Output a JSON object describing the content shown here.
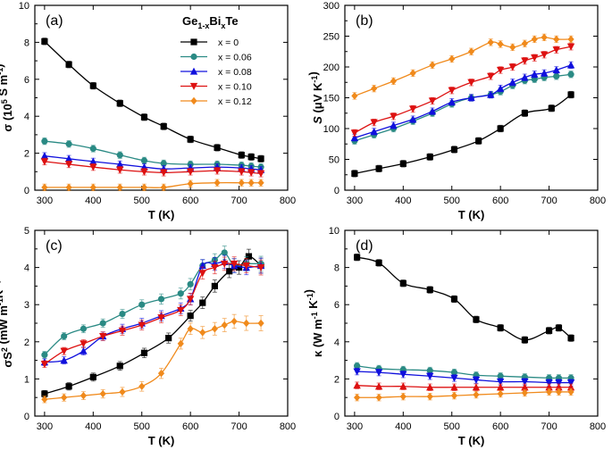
{
  "chart_data": [
    {
      "type": "line",
      "panel_label": "(a)",
      "title": "",
      "xlabel": "T (K)",
      "ylabel": "σ (10⁵ S m⁻¹)",
      "xlim": [
        280,
        800
      ],
      "ylim": [
        0,
        10
      ],
      "xticks": [
        300,
        400,
        500,
        600,
        700,
        800
      ],
      "yticks": [
        0,
        2,
        4,
        6,
        8,
        10
      ],
      "legend": {
        "title_main": "Ge",
        "title_sub1": "1-x",
        "title_mid": "Bi",
        "title_sub2": "x",
        "title_end": "Te",
        "entries": [
          "x = 0",
          "x = 0.06",
          "x = 0.08",
          "x = 0.10",
          "x = 0.12"
        ]
      },
      "x": [
        300,
        350,
        400,
        455,
        505,
        545,
        600,
        655,
        705,
        725,
        745
      ],
      "series": [
        {
          "name": "x = 0",
          "color": "#000000",
          "marker": "square",
          "values": [
            8.05,
            6.8,
            5.65,
            4.7,
            3.95,
            3.45,
            2.75,
            2.3,
            1.9,
            1.8,
            1.7
          ]
        },
        {
          "name": "x = 0.06",
          "color": "#2a8a84",
          "marker": "circle",
          "values": [
            2.65,
            2.5,
            2.25,
            1.9,
            1.6,
            1.45,
            1.4,
            1.4,
            1.35,
            1.3,
            1.25
          ]
        },
        {
          "name": "x = 0.08",
          "color": "#1010dd",
          "marker": "triangle-up",
          "values": [
            1.85,
            1.7,
            1.55,
            1.4,
            1.25,
            1.15,
            1.2,
            1.25,
            1.2,
            1.15,
            1.1
          ]
        },
        {
          "name": "x = 0.10",
          "color": "#dd1111",
          "marker": "triangle-down",
          "values": [
            1.55,
            1.4,
            1.25,
            1.1,
            1.0,
            0.95,
            1.0,
            1.05,
            1.0,
            0.95,
            0.9
          ]
        },
        {
          "name": "x = 0.12",
          "color": "#f08a1c",
          "marker": "diamond",
          "values": [
            0.15,
            0.15,
            0.15,
            0.15,
            0.15,
            0.15,
            0.35,
            0.4,
            0.4,
            0.4,
            0.4
          ]
        }
      ]
    },
    {
      "type": "line",
      "panel_label": "(b)",
      "title": "",
      "xlabel": "T (K)",
      "ylabel": "S (μV K⁻¹)",
      "xlim": [
        280,
        800
      ],
      "ylim": [
        0,
        300
      ],
      "xticks": [
        300,
        400,
        500,
        600,
        700,
        800
      ],
      "yticks": [
        0,
        50,
        100,
        150,
        200,
        250,
        300
      ],
      "series": [
        {
          "name": "x = 0",
          "color": "#000000",
          "marker": "square",
          "x": [
            300,
            350,
            400,
            455,
            505,
            555,
            600,
            650,
            705,
            745
          ],
          "values": [
            27,
            35,
            43,
            54,
            66,
            80,
            100,
            125,
            133,
            155
          ]
        },
        {
          "name": "x = 0.06",
          "color": "#2a8a84",
          "marker": "circle",
          "x": [
            300,
            340,
            380,
            420,
            460,
            500,
            540,
            580,
            600,
            625,
            650,
            670,
            690,
            715,
            745
          ],
          "values": [
            80,
            90,
            100,
            112,
            125,
            140,
            150,
            155,
            160,
            170,
            178,
            180,
            183,
            185,
            188
          ]
        },
        {
          "name": "x = 0.08",
          "color": "#1010dd",
          "marker": "triangle-up",
          "x": [
            300,
            340,
            380,
            420,
            460,
            500,
            540,
            580,
            600,
            625,
            650,
            670,
            690,
            715,
            745
          ],
          "values": [
            85,
            95,
            105,
            115,
            128,
            143,
            150,
            155,
            165,
            175,
            183,
            188,
            190,
            195,
            203
          ]
        },
        {
          "name": "x = 0.10",
          "color": "#dd1111",
          "marker": "triangle-down",
          "x": [
            300,
            340,
            380,
            420,
            460,
            500,
            540,
            580,
            600,
            625,
            650,
            670,
            690,
            715,
            745
          ],
          "values": [
            93,
            110,
            120,
            132,
            145,
            162,
            175,
            185,
            195,
            200,
            210,
            215,
            220,
            228,
            233
          ]
        },
        {
          "name": "x = 0.12",
          "color": "#f08a1c",
          "marker": "diamond",
          "x": [
            300,
            340,
            380,
            420,
            460,
            500,
            540,
            580,
            600,
            625,
            650,
            670,
            690,
            715,
            745
          ],
          "values": [
            153,
            165,
            177,
            190,
            203,
            213,
            225,
            240,
            237,
            232,
            238,
            245,
            248,
            245,
            245
          ]
        }
      ]
    },
    {
      "type": "line",
      "panel_label": "(c)",
      "title": "",
      "xlabel": "T (K)",
      "ylabel": "σS² (mW m⁻¹K⁻²)",
      "xlim": [
        280,
        800
      ],
      "ylim": [
        0,
        5
      ],
      "xticks": [
        300,
        400,
        500,
        600,
        700,
        800
      ],
      "yticks": [
        0,
        1,
        2,
        3,
        4,
        5
      ],
      "series": [
        {
          "name": "x = 0",
          "color": "#000000",
          "marker": "square",
          "x": [
            300,
            350,
            400,
            455,
            505,
            555,
            600,
            625,
            650,
            680,
            700,
            720,
            745
          ],
          "values": [
            0.6,
            0.8,
            1.05,
            1.35,
            1.7,
            2.1,
            2.7,
            3.05,
            3.5,
            3.9,
            4.0,
            4.3,
            4.05
          ]
        },
        {
          "name": "x = 0.06",
          "color": "#2a8a84",
          "marker": "circle",
          "x": [
            300,
            340,
            380,
            420,
            460,
            500,
            540,
            580,
            600,
            625,
            650,
            670,
            690,
            715,
            745
          ],
          "values": [
            1.65,
            2.15,
            2.35,
            2.5,
            2.75,
            3.0,
            3.15,
            3.3,
            3.55,
            4.05,
            4.2,
            4.4,
            4.05,
            4.1,
            4.1
          ]
        },
        {
          "name": "x = 0.08",
          "color": "#1010dd",
          "marker": "triangle-up",
          "x": [
            300,
            340,
            380,
            420,
            460,
            500,
            540,
            580,
            600,
            625,
            650,
            670,
            690,
            715,
            745
          ],
          "values": [
            1.45,
            1.5,
            1.75,
            2.15,
            2.35,
            2.5,
            2.7,
            2.9,
            3.15,
            4.05,
            4.1,
            4.15,
            4.05,
            4.0,
            4.05
          ]
        },
        {
          "name": "x = 0.10",
          "color": "#dd1111",
          "marker": "triangle-down",
          "x": [
            300,
            340,
            380,
            420,
            460,
            500,
            540,
            580,
            600,
            625,
            650,
            670,
            690,
            715,
            745
          ],
          "values": [
            1.4,
            1.75,
            1.95,
            2.15,
            2.3,
            2.45,
            2.65,
            2.85,
            3.15,
            3.85,
            4.0,
            4.1,
            4.1,
            4.05,
            4.0
          ]
        },
        {
          "name": "x = 0.12",
          "color": "#f08a1c",
          "marker": "diamond",
          "x": [
            300,
            340,
            380,
            420,
            460,
            500,
            540,
            580,
            600,
            625,
            650,
            670,
            690,
            715,
            745
          ],
          "values": [
            0.45,
            0.5,
            0.55,
            0.6,
            0.65,
            0.8,
            1.15,
            1.95,
            2.35,
            2.25,
            2.35,
            2.45,
            2.55,
            2.5,
            2.5
          ]
        }
      ]
    },
    {
      "type": "line",
      "panel_label": "(d)",
      "title": "",
      "xlabel": "T (K)",
      "ylabel": "κ (W m⁻¹ K⁻¹)",
      "xlim": [
        280,
        800
      ],
      "ylim": [
        0,
        10
      ],
      "xticks": [
        300,
        400,
        500,
        600,
        700,
        800
      ],
      "yticks": [
        0,
        2,
        4,
        6,
        8,
        10
      ],
      "series": [
        {
          "name": "x = 0",
          "color": "#000000",
          "marker": "square",
          "x": [
            305,
            350,
            400,
            455,
            505,
            550,
            600,
            650,
            700,
            720,
            745
          ],
          "values": [
            8.55,
            8.25,
            7.15,
            6.8,
            6.3,
            5.2,
            4.75,
            4.1,
            4.6,
            4.75,
            4.2
          ]
        },
        {
          "name": "x = 0.06",
          "color": "#2a8a84",
          "marker": "circle",
          "x": [
            305,
            350,
            400,
            455,
            505,
            550,
            600,
            650,
            700,
            720,
            745
          ],
          "values": [
            2.7,
            2.55,
            2.5,
            2.45,
            2.35,
            2.2,
            2.15,
            2.1,
            2.05,
            2.05,
            2.05
          ]
        },
        {
          "name": "x = 0.08",
          "color": "#1010dd",
          "marker": "triangle-down",
          "x": [
            305,
            350,
            400,
            455,
            505,
            550,
            600,
            650,
            700,
            720,
            745
          ],
          "values": [
            2.4,
            2.35,
            2.25,
            2.15,
            2.05,
            1.95,
            1.85,
            1.85,
            1.8,
            1.8,
            1.8
          ]
        },
        {
          "name": "x = 0.10",
          "color": "#dd1111",
          "marker": "triangle-up",
          "x": [
            305,
            350,
            400,
            455,
            505,
            550,
            600,
            650,
            700,
            720,
            745
          ],
          "values": [
            1.65,
            1.6,
            1.6,
            1.55,
            1.55,
            1.55,
            1.55,
            1.55,
            1.55,
            1.55,
            1.55
          ]
        },
        {
          "name": "x = 0.12",
          "color": "#f08a1c",
          "marker": "diamond",
          "x": [
            305,
            350,
            400,
            455,
            505,
            550,
            600,
            650,
            700,
            720,
            745
          ],
          "values": [
            1.0,
            1.0,
            1.05,
            1.05,
            1.1,
            1.15,
            1.2,
            1.25,
            1.3,
            1.3,
            1.3
          ]
        }
      ]
    }
  ]
}
